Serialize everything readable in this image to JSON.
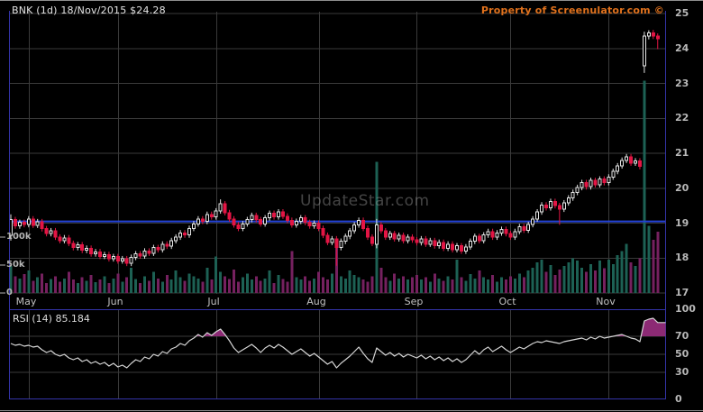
{
  "header": {
    "title": "BNK (1d) 18/Nov/2015 $24.28",
    "property_notice": "Property of Screenulator.com ©",
    "watermark": "UpdateStar.com"
  },
  "colors": {
    "background": "#000000",
    "grid": "#3a3a3a",
    "panel_border_blue": "#3333a8",
    "support_line_blue": "#2443d8",
    "candle_up": "#e4e4e4",
    "candle_down": "#e31544",
    "volume_up": "#1d6154",
    "volume_down": "#75215f",
    "rsi_line": "#d6d6d6",
    "rsi_fill": "#8c2a74",
    "property_text": "#e0711c"
  },
  "chart_data": {
    "type": "candlestick+volume+rsi",
    "title": "BNK daily candlestick chart, May - Nov 2015, last 24.28",
    "price_axis": {
      "ticks": [
        25,
        24,
        23,
        22,
        21,
        20,
        19,
        18,
        17
      ],
      "range": [
        17,
        25
      ]
    },
    "volume_axis": {
      "labels": [
        "100k",
        "50k",
        "0"
      ],
      "values_k": [
        100,
        50,
        0
      ]
    },
    "months": [
      "May",
      "Jun",
      "Jul",
      "Aug",
      "Sep",
      "Oct",
      "Nov"
    ],
    "month_indices": [
      4,
      24,
      46,
      69,
      91,
      112,
      134
    ],
    "support_line_price": 19.05,
    "candles": {
      "first_open": 18.65,
      "closes": [
        19.1,
        18.92,
        19.02,
        18.96,
        19.12,
        18.94,
        19.04,
        18.84,
        18.7,
        18.78,
        18.6,
        18.5,
        18.58,
        18.42,
        18.3,
        18.38,
        18.22,
        18.28,
        18.12,
        18.18,
        18.05,
        18.1,
        17.98,
        18.04,
        17.92,
        17.98,
        17.85,
        18.02,
        18.12,
        18.06,
        18.2,
        18.14,
        18.3,
        18.24,
        18.4,
        18.34,
        18.5,
        18.6,
        18.72,
        18.66,
        18.85,
        18.98,
        19.12,
        19.05,
        19.25,
        19.18,
        19.35,
        19.55,
        19.3,
        19.12,
        18.95,
        18.85,
        18.98,
        19.1,
        19.22,
        19.1,
        18.98,
        19.15,
        19.28,
        19.18,
        19.32,
        19.2,
        19.08,
        18.95,
        19.05,
        19.15,
        19.02,
        18.92,
        19.0,
        18.85,
        18.65,
        18.45,
        18.55,
        18.3,
        18.48,
        18.62,
        18.78,
        18.95,
        19.08,
        18.85,
        18.6,
        18.42,
        18.95,
        18.78,
        18.6,
        18.7,
        18.55,
        18.65,
        18.5,
        18.6,
        18.52,
        18.44,
        18.55,
        18.4,
        18.5,
        18.35,
        18.45,
        18.28,
        18.4,
        18.24,
        18.35,
        18.2,
        18.32,
        18.48,
        18.62,
        18.5,
        18.66,
        18.76,
        18.6,
        18.72,
        18.82,
        18.7,
        18.6,
        18.76,
        18.9,
        18.8,
        18.96,
        19.12,
        19.32,
        19.52,
        19.44,
        19.62,
        19.5,
        19.4,
        19.58,
        19.72,
        19.88,
        20.02,
        20.16,
        20.04,
        20.22,
        20.1,
        20.26,
        20.16,
        20.32,
        20.48,
        20.64,
        20.8,
        20.9,
        20.72,
        20.78,
        20.62,
        24.35,
        24.45,
        24.35,
        24.28
      ],
      "volumes_k": [
        48,
        30,
        26,
        34,
        40,
        22,
        28,
        35,
        18,
        25,
        30,
        20,
        26,
        38,
        24,
        18,
        28,
        22,
        32,
        19,
        24,
        30,
        18,
        26,
        35,
        20,
        28,
        45,
        25,
        18,
        30,
        22,
        38,
        26,
        20,
        32,
        24,
        40,
        28,
        22,
        35,
        30,
        26,
        20,
        45,
        24,
        65,
        38,
        30,
        25,
        42,
        20,
        28,
        35,
        24,
        30,
        22,
        26,
        40,
        18,
        32,
        25,
        20,
        75,
        28,
        24,
        30,
        22,
        26,
        38,
        28,
        24,
        35,
        95,
        30,
        26,
        40,
        32,
        28,
        24,
        20,
        30,
        235,
        45,
        28,
        22,
        35,
        26,
        30,
        24,
        28,
        32,
        24,
        28,
        20,
        35,
        26,
        22,
        30,
        24,
        60,
        28,
        22,
        34,
        26,
        40,
        28,
        24,
        32,
        20,
        28,
        24,
        30,
        26,
        35,
        28,
        40,
        45,
        55,
        60,
        38,
        50,
        32,
        42,
        48,
        55,
        62,
        58,
        45,
        38,
        52,
        40,
        58,
        44,
        60,
        52,
        68,
        75,
        88,
        55,
        48,
        62,
        380,
        120,
        95,
        110
      ],
      "special": {
        "0": {
          "o": 18.65,
          "h": 19.25,
          "l": 18.5
        },
        "47": {
          "h": 19.68
        },
        "73": {
          "l": 17.78
        },
        "82": {
          "o": 18.4,
          "h": 19.12,
          "l": 18.28
        },
        "123": {
          "l": 18.95
        },
        "142": {
          "o": 23.5,
          "h": 24.48,
          "l": 23.3
        },
        "143": {
          "h": 24.52,
          "l": 24.26
        },
        "145": {
          "l": 23.98
        }
      }
    },
    "rsi": {
      "label": "RSI (14) 85.184",
      "period": 14,
      "last_value": 85.184,
      "axis_ticks": [
        100,
        70,
        50,
        30,
        0
      ],
      "overbought_level": 70,
      "values": [
        62,
        60,
        61,
        59,
        60,
        58,
        59,
        55,
        52,
        54,
        50,
        48,
        50,
        46,
        44,
        46,
        42,
        44,
        40,
        42,
        39,
        41,
        37,
        40,
        36,
        38,
        35,
        40,
        44,
        42,
        47,
        45,
        50,
        48,
        53,
        51,
        56,
        58,
        62,
        60,
        65,
        68,
        72,
        69,
        74,
        71,
        75,
        78,
        72,
        65,
        57,
        52,
        55,
        58,
        61,
        57,
        52,
        57,
        60,
        57,
        61,
        58,
        54,
        50,
        53,
        56,
        52,
        48,
        51,
        47,
        43,
        39,
        42,
        35,
        40,
        44,
        48,
        53,
        58,
        51,
        45,
        41,
        57,
        53,
        49,
        52,
        48,
        51,
        47,
        50,
        48,
        46,
        49,
        45,
        48,
        44,
        47,
        43,
        46,
        42,
        45,
        41,
        44,
        49,
        54,
        50,
        55,
        58,
        53,
        56,
        59,
        55,
        52,
        55,
        58,
        56,
        59,
        62,
        64,
        63,
        65,
        64,
        63,
        62,
        64,
        65,
        66,
        67,
        68,
        66,
        69,
        67,
        70,
        68,
        69,
        70,
        71,
        72,
        70,
        68,
        67,
        64,
        87,
        89,
        90,
        85.18
      ]
    }
  }
}
